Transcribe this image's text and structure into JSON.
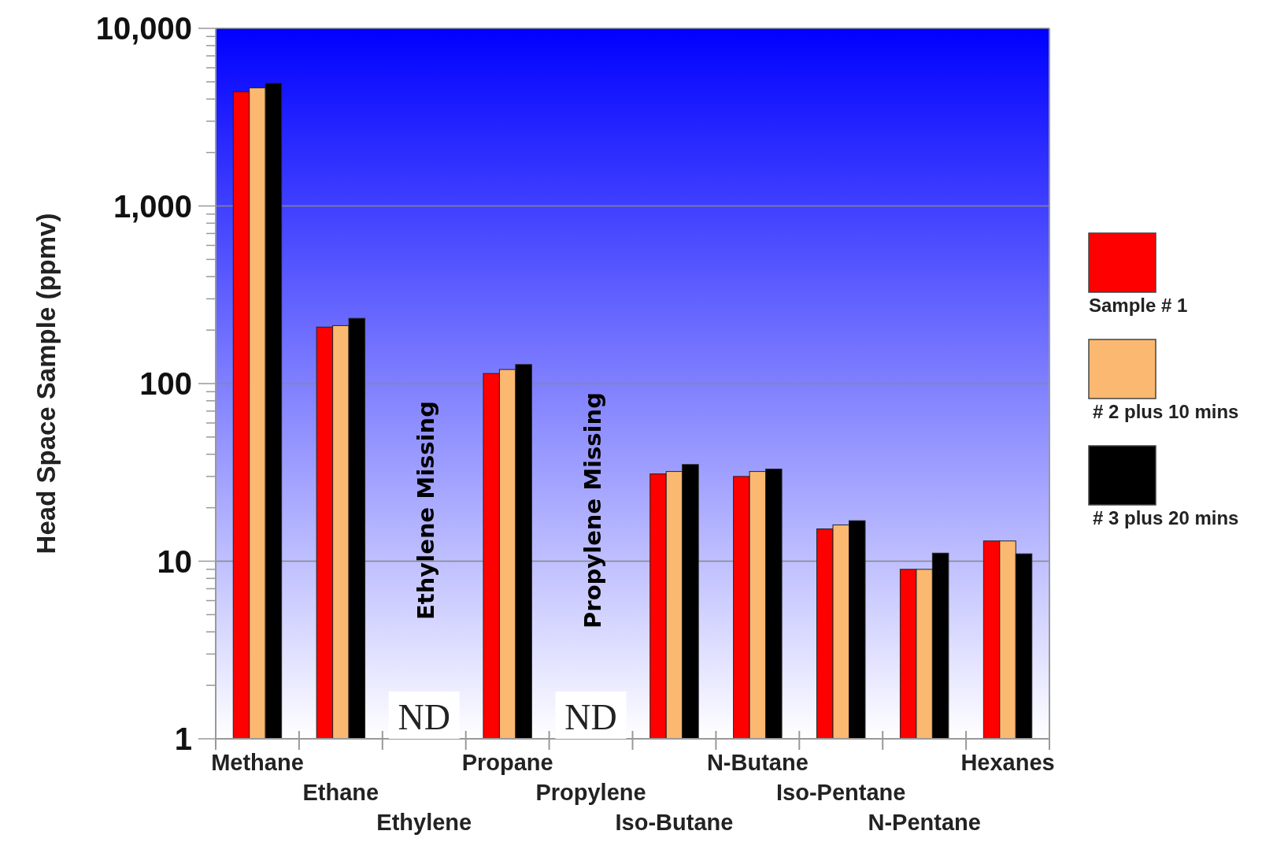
{
  "chart_data": {
    "type": "bar",
    "ylabel": "Head Space Sample (ppmv)",
    "log": true,
    "categories": [
      "Methane",
      "Ethane",
      "Ethylene",
      "Propane",
      "Propylene",
      "Iso-Butane",
      "N-Butane",
      "Iso-Pentane",
      "N-Pentane",
      "Hexanes"
    ],
    "series": [
      {
        "name": "Sample # 1",
        "color": "#ff0000",
        "values": [
          4390,
          208,
          null,
          114,
          null,
          31,
          30,
          15.2,
          9,
          13
        ]
      },
      {
        "name": "# 2 plus 10 mins",
        "color": "#fbb870",
        "values": [
          4620,
          212,
          null,
          120,
          null,
          32,
          32,
          16,
          9,
          13
        ]
      },
      {
        "name": "# 3 plus 20 mins",
        "color": "#000000",
        "values": [
          4900,
          233,
          null,
          128,
          null,
          35,
          33,
          16.9,
          11.1,
          11
        ]
      }
    ],
    "ylim": [
      1,
      10000
    ],
    "yticks": [
      1,
      {
        "value": 2,
        "label": null
      },
      {
        "value": 3,
        "label": null
      },
      {
        "value": 4,
        "label": null
      },
      {
        "value": 5,
        "label": null
      },
      {
        "value": 6,
        "label": null
      },
      {
        "value": 7,
        "label": null
      },
      {
        "value": 8,
        "label": null
      },
      {
        "value": 9,
        "label": null
      },
      10,
      {
        "value": 20,
        "label": null
      },
      {
        "value": 30,
        "label": null
      },
      {
        "value": 40,
        "label": null
      },
      {
        "value": 50,
        "label": null
      },
      {
        "value": 60,
        "label": null
      },
      {
        "value": 70,
        "label": null
      },
      {
        "value": 80,
        "label": null
      },
      {
        "value": 90,
        "label": null
      },
      100,
      {
        "value": 200,
        "label": null
      },
      {
        "value": 300,
        "label": null
      },
      {
        "value": 400,
        "label": null
      },
      {
        "value": 500,
        "label": null
      },
      {
        "value": 600,
        "label": null
      },
      {
        "value": 700,
        "label": null
      },
      {
        "value": 800,
        "label": null
      },
      {
        "value": 900,
        "label": null
      },
      {
        "value": 1000,
        "label": "1,000"
      },
      {
        "value": 2000,
        "label": null
      },
      {
        "value": 3000,
        "label": null
      },
      {
        "value": 4000,
        "label": null
      },
      {
        "value": 5000,
        "label": null
      },
      {
        "value": 6000,
        "label": null
      },
      {
        "value": 7000,
        "label": null
      },
      {
        "value": 8000,
        "label": null
      },
      {
        "value": 9000,
        "label": null
      },
      {
        "value": 10000,
        "label": "10,000"
      }
    ],
    "grid": "y",
    "legend": "right",
    "annotations": [
      "ND",
      "ND",
      "Ethylene  Missing",
      "Propylene  Missing"
    ]
  }
}
